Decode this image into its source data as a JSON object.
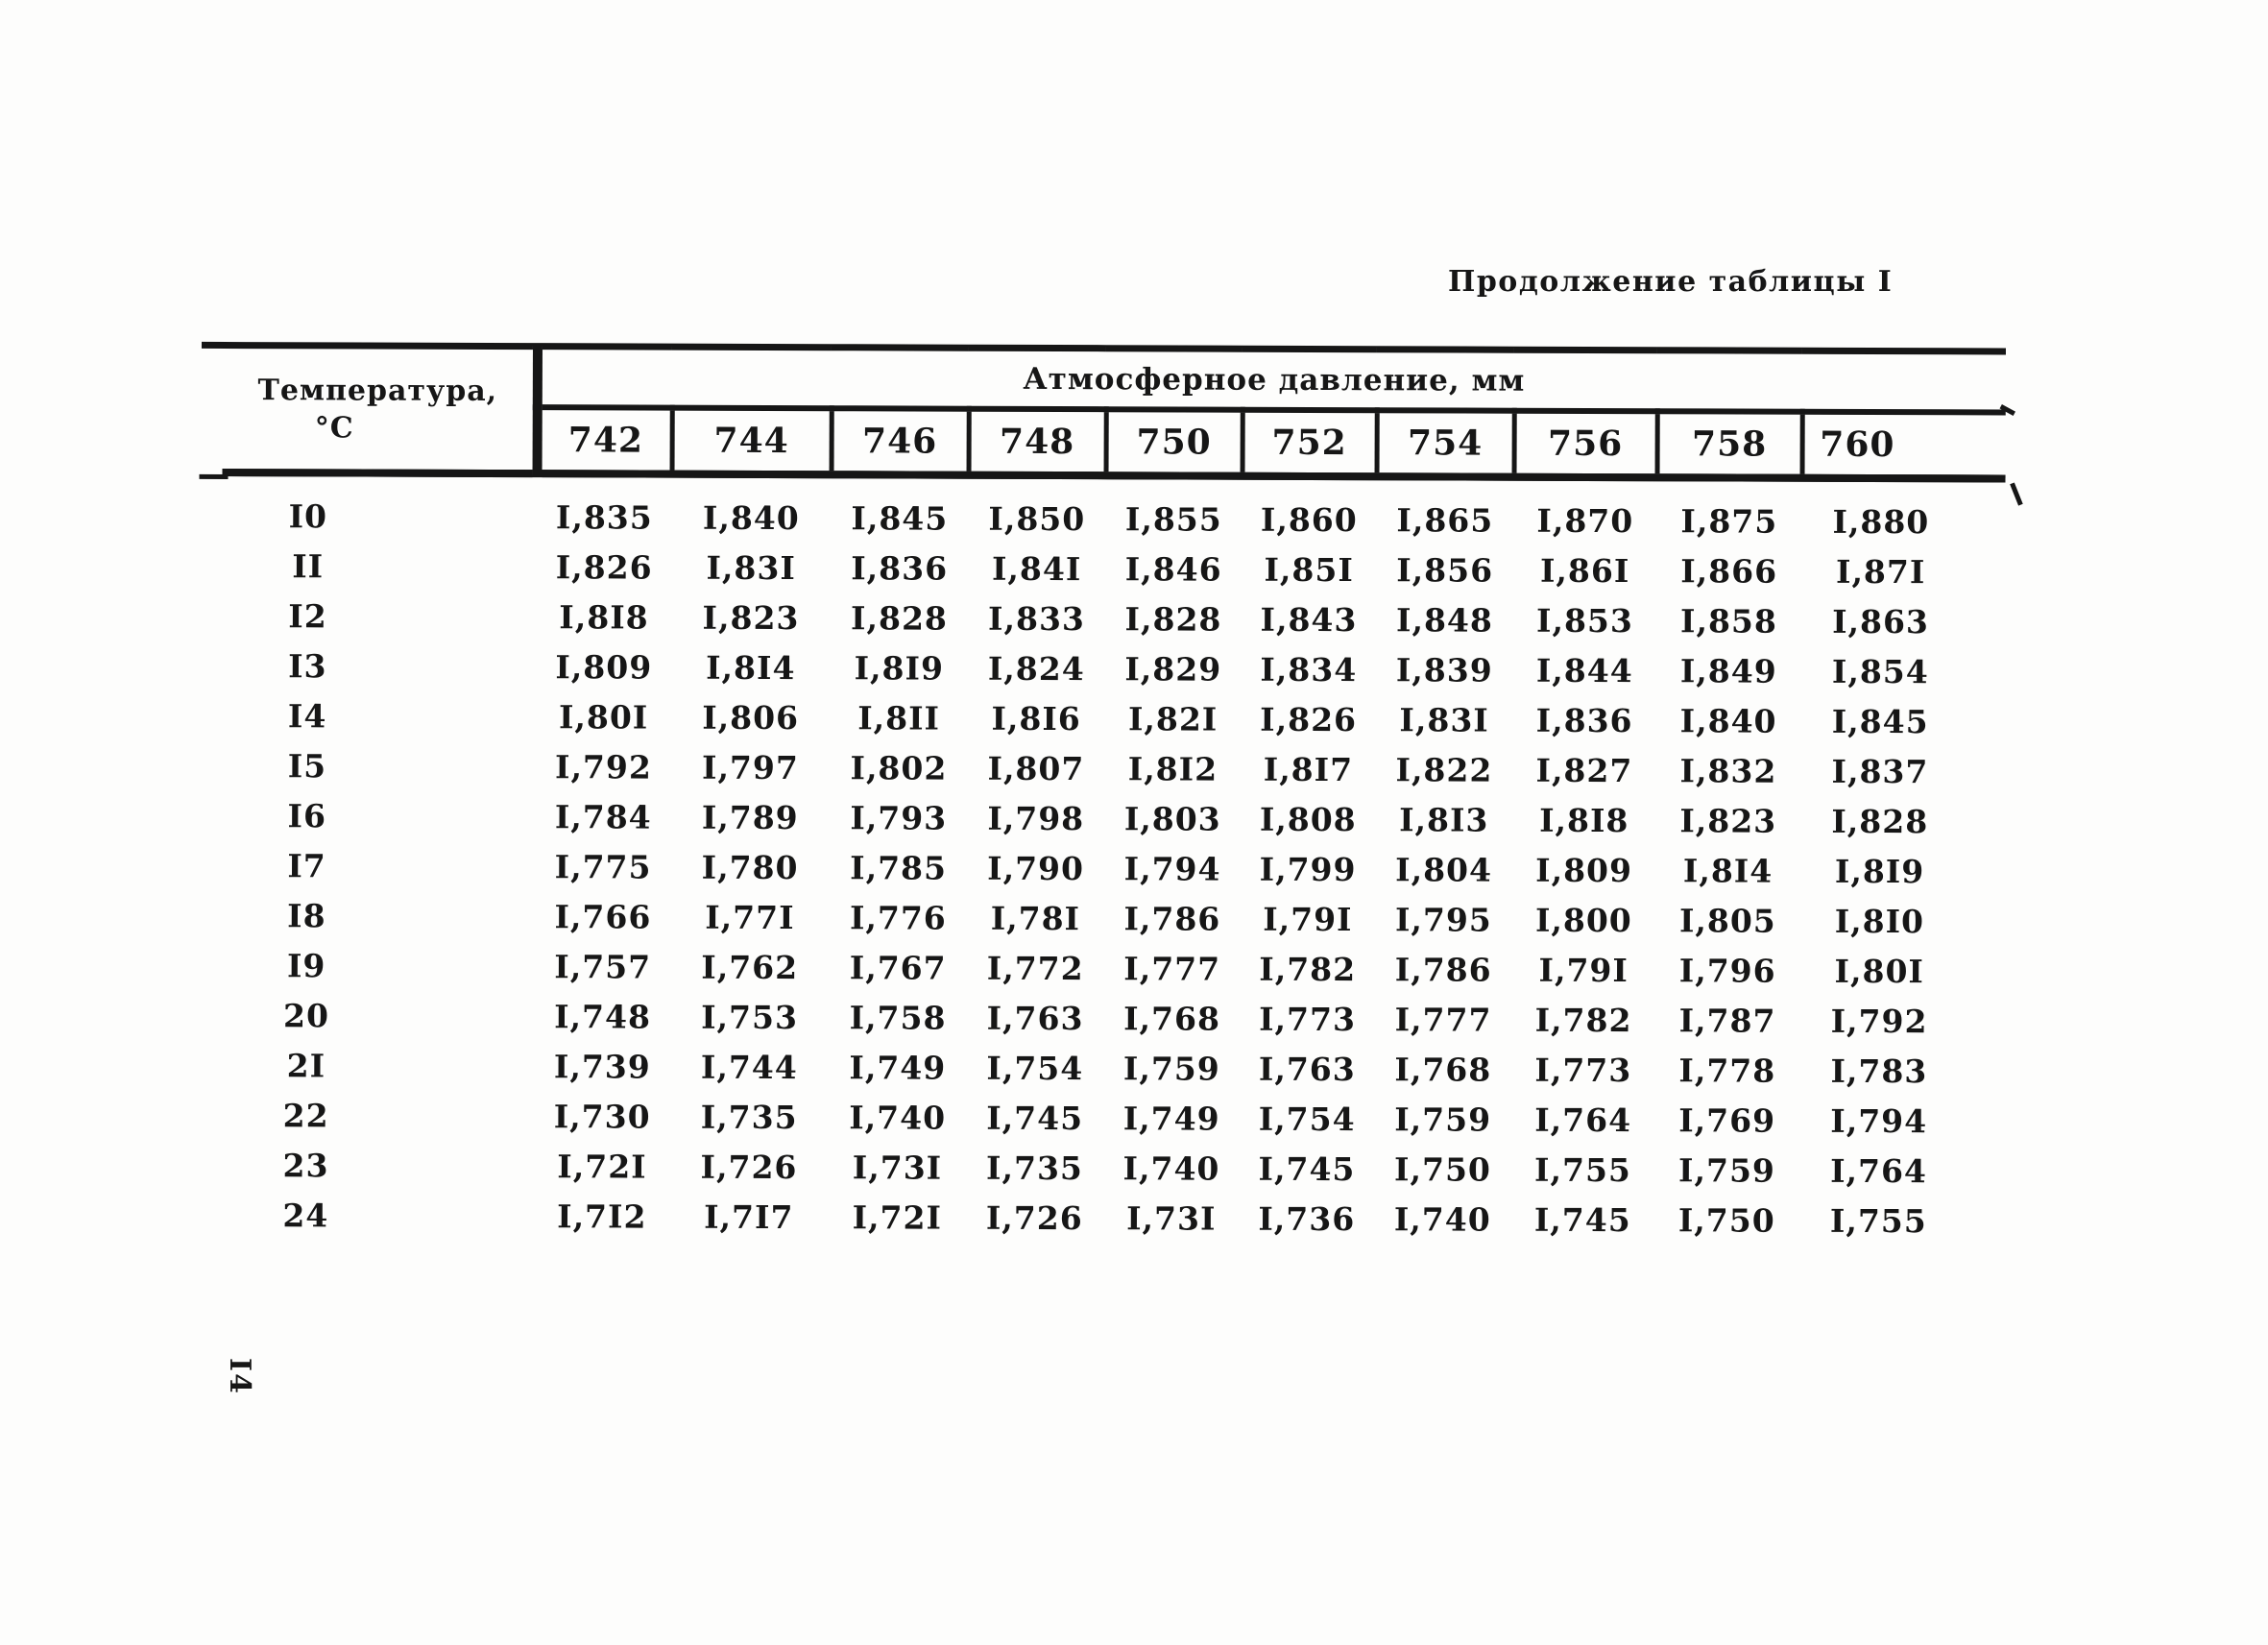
{
  "doc": {
    "title": "Продолжение таблицы I",
    "page_number": "I4"
  },
  "table": {
    "temp_header": [
      "Температура,",
      "°С"
    ],
    "pressure_header": "Атмосферное давление, мм",
    "columns": [
      "742",
      "744",
      "746",
      "748",
      "750",
      "752",
      "754",
      "756",
      "758",
      "760"
    ],
    "rows": [
      {
        "temp": "I0",
        "values": [
          "I,835",
          "I,840",
          "I,845",
          "I,850",
          "I,855",
          "I,860",
          "I,865",
          "I,870",
          "I,875",
          "I,880"
        ]
      },
      {
        "temp": "II",
        "values": [
          "I,826",
          "I,83I",
          "I,836",
          "I,84I",
          "I,846",
          "I,85I",
          "I,856",
          "I,86I",
          "I,866",
          "I,87I"
        ]
      },
      {
        "temp": "I2",
        "values": [
          "I,8I8",
          "I,823",
          "I,828",
          "I,833",
          "I,828",
          "I,843",
          "I,848",
          "I,853",
          "I,858",
          "I,863"
        ]
      },
      {
        "temp": "I3",
        "values": [
          "I,809",
          "I,8I4",
          "I,8I9",
          "I,824",
          "I,829",
          "I,834",
          "I,839",
          "I,844",
          "I,849",
          "I,854"
        ]
      },
      {
        "temp": "I4",
        "values": [
          "I,80I",
          "I,806",
          "I,8II",
          "I,8I6",
          "I,82I",
          "I,826",
          "I,83I",
          "I,836",
          "I,840",
          "I,845"
        ]
      },
      {
        "temp": "I5",
        "values": [
          "I,792",
          "I,797",
          "I,802",
          "I,807",
          "I,8I2",
          "I,8I7",
          "I,822",
          "I,827",
          "I,832",
          "I,837"
        ]
      },
      {
        "temp": "I6",
        "values": [
          "I,784",
          "I,789",
          "I,793",
          "I,798",
          "I,803",
          "I,808",
          "I,8I3",
          "I,8I8",
          "I,823",
          "I,828"
        ]
      },
      {
        "temp": "I7",
        "values": [
          "I,775",
          "I,780",
          "I,785",
          "I,790",
          "I,794",
          "I,799",
          "I,804",
          "I,809",
          "I,8I4",
          "I,8I9"
        ]
      },
      {
        "temp": "I8",
        "values": [
          "I,766",
          "I,77I",
          "I,776",
          "I,78I",
          "I,786",
          "I,79I",
          "I,795",
          "I,800",
          "I,805",
          "I,8I0"
        ]
      },
      {
        "temp": "I9",
        "values": [
          "I,757",
          "I,762",
          "I,767",
          "I,772",
          "I,777",
          "I,782",
          "I,786",
          "I,79I",
          "I,796",
          "I,80I"
        ]
      },
      {
        "temp": "20",
        "values": [
          "I,748",
          "I,753",
          "I,758",
          "I,763",
          "I,768",
          "I,773",
          "I,777",
          "I,782",
          "I,787",
          "I,792"
        ]
      },
      {
        "temp": "2I",
        "values": [
          "I,739",
          "I,744",
          "I,749",
          "I,754",
          "I,759",
          "I,763",
          "I,768",
          "I,773",
          "I,778",
          "I,783"
        ]
      },
      {
        "temp": "22",
        "values": [
          "I,730",
          "I,735",
          "I,740",
          "I,745",
          "I,749",
          "I,754",
          "I,759",
          "I,764",
          "I,769",
          "I,794"
        ]
      },
      {
        "temp": "23",
        "values": [
          "I,72I",
          "I,726",
          "I,73I",
          "I,735",
          "I,740",
          "I,745",
          "I,750",
          "I,755",
          "I,759",
          "I,764"
        ]
      },
      {
        "temp": "24",
        "values": [
          "I,7I2",
          "I,7I7",
          "I,72I",
          "I,726",
          "I,73I",
          "I,736",
          "I,740",
          "I,745",
          "I,750",
          "I,755"
        ]
      }
    ]
  }
}
